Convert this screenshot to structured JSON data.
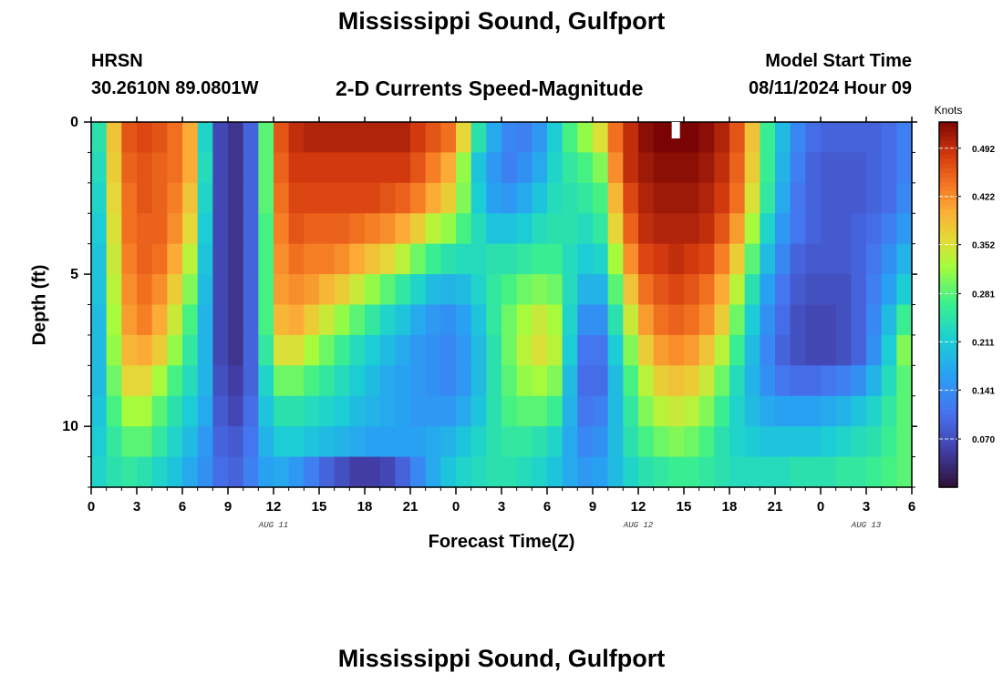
{
  "header": {
    "title": "Mississippi Sound, Gulfport",
    "station_code": "HRSN",
    "station_coords": "30.2610N  89.0801W",
    "plot_title": "2-D Currents Speed-Magnitude",
    "start_label": "Model Start Time",
    "start_value": "08/11/2024 Hour 09"
  },
  "footer": {
    "title": "Mississippi Sound, Gulfport"
  },
  "chart_data": {
    "type": "heatmap",
    "title": "2-D Currents Speed-Magnitude",
    "xlabel": "Forecast Time(Z)",
    "ylabel": "Depth (ft)",
    "x_hours_from_aug11_00z": [
      0,
      54
    ],
    "x_ticks": [
      "0",
      "3",
      "6",
      "9",
      "12",
      "15",
      "18",
      "21",
      "0",
      "3",
      "6",
      "9",
      "12",
      "15",
      "18",
      "21",
      "0",
      "3",
      "6"
    ],
    "date_labels": [
      "AUG 11",
      "AUG 12",
      "AUG 13"
    ],
    "y_ticks": [
      "0",
      "5",
      "10"
    ],
    "ylim_ft": [
      0,
      12
    ],
    "depth_levels_ft": [
      0.5,
      1.5,
      2.5,
      3.5,
      4.5,
      5.5,
      6.5,
      7.5,
      8.5,
      9.5,
      10.5,
      11.5
    ],
    "colorbar": {
      "title": "Knots",
      "ticks": [
        "0.070",
        "0.141",
        "0.211",
        "0.281",
        "0.352",
        "0.422",
        "0.492"
      ],
      "range_knots": [
        0.0,
        0.53
      ]
    },
    "current_speed_knots_by_depth": [
      [
        0.24,
        0.38,
        0.46,
        0.47,
        0.46,
        0.44,
        0.4,
        0.22,
        0.06,
        0.04,
        0.09,
        0.28,
        0.46,
        0.49,
        0.5,
        0.5,
        0.5,
        0.5,
        0.5,
        0.5,
        0.5,
        0.48,
        0.46,
        0.44,
        0.36,
        0.24,
        0.17,
        0.13,
        0.12,
        0.15,
        0.21,
        0.27,
        0.31,
        0.35,
        0.44,
        0.49,
        0.52,
        0.53,
        0.53,
        0.53,
        0.52,
        0.5,
        0.46,
        0.38,
        0.26,
        0.19,
        0.13,
        0.1,
        0.09,
        0.09,
        0.09,
        0.09,
        0.1,
        0.12
      ],
      [
        0.23,
        0.37,
        0.45,
        0.46,
        0.45,
        0.44,
        0.4,
        0.23,
        0.06,
        0.04,
        0.09,
        0.28,
        0.45,
        0.48,
        0.48,
        0.48,
        0.48,
        0.48,
        0.48,
        0.48,
        0.48,
        0.46,
        0.43,
        0.4,
        0.31,
        0.2,
        0.15,
        0.12,
        0.14,
        0.17,
        0.22,
        0.25,
        0.27,
        0.3,
        0.42,
        0.49,
        0.51,
        0.52,
        0.52,
        0.52,
        0.51,
        0.49,
        0.45,
        0.37,
        0.26,
        0.18,
        0.12,
        0.09,
        0.08,
        0.08,
        0.08,
        0.09,
        0.1,
        0.12
      ],
      [
        0.22,
        0.36,
        0.44,
        0.46,
        0.45,
        0.43,
        0.38,
        0.22,
        0.06,
        0.04,
        0.09,
        0.28,
        0.44,
        0.47,
        0.47,
        0.47,
        0.47,
        0.47,
        0.47,
        0.46,
        0.45,
        0.43,
        0.4,
        0.37,
        0.3,
        0.21,
        0.16,
        0.15,
        0.17,
        0.2,
        0.23,
        0.24,
        0.25,
        0.27,
        0.39,
        0.47,
        0.5,
        0.51,
        0.51,
        0.51,
        0.5,
        0.48,
        0.44,
        0.35,
        0.25,
        0.17,
        0.11,
        0.09,
        0.08,
        0.08,
        0.08,
        0.09,
        0.1,
        0.13
      ],
      [
        0.21,
        0.35,
        0.44,
        0.45,
        0.45,
        0.42,
        0.36,
        0.21,
        0.06,
        0.04,
        0.09,
        0.27,
        0.43,
        0.46,
        0.45,
        0.45,
        0.45,
        0.44,
        0.43,
        0.42,
        0.4,
        0.37,
        0.33,
        0.31,
        0.27,
        0.23,
        0.2,
        0.2,
        0.21,
        0.23,
        0.24,
        0.24,
        0.23,
        0.25,
        0.36,
        0.45,
        0.49,
        0.5,
        0.5,
        0.5,
        0.49,
        0.46,
        0.41,
        0.32,
        0.22,
        0.15,
        0.11,
        0.09,
        0.08,
        0.08,
        0.09,
        0.1,
        0.12,
        0.15
      ],
      [
        0.2,
        0.34,
        0.43,
        0.45,
        0.44,
        0.4,
        0.33,
        0.2,
        0.06,
        0.04,
        0.09,
        0.27,
        0.42,
        0.44,
        0.43,
        0.43,
        0.42,
        0.4,
        0.38,
        0.36,
        0.33,
        0.29,
        0.26,
        0.24,
        0.23,
        0.23,
        0.24,
        0.24,
        0.25,
        0.26,
        0.26,
        0.23,
        0.21,
        0.22,
        0.32,
        0.42,
        0.47,
        0.48,
        0.49,
        0.48,
        0.47,
        0.43,
        0.37,
        0.28,
        0.19,
        0.13,
        0.09,
        0.08,
        0.08,
        0.08,
        0.09,
        0.11,
        0.14,
        0.18
      ],
      [
        0.2,
        0.33,
        0.42,
        0.44,
        0.42,
        0.37,
        0.3,
        0.19,
        0.06,
        0.04,
        0.09,
        0.27,
        0.41,
        0.42,
        0.41,
        0.39,
        0.37,
        0.34,
        0.31,
        0.28,
        0.25,
        0.22,
        0.19,
        0.18,
        0.19,
        0.22,
        0.25,
        0.27,
        0.29,
        0.3,
        0.29,
        0.23,
        0.18,
        0.18,
        0.28,
        0.38,
        0.44,
        0.46,
        0.47,
        0.46,
        0.44,
        0.4,
        0.33,
        0.24,
        0.16,
        0.11,
        0.08,
        0.07,
        0.07,
        0.07,
        0.09,
        0.12,
        0.16,
        0.21
      ],
      [
        0.19,
        0.32,
        0.41,
        0.43,
        0.4,
        0.34,
        0.27,
        0.18,
        0.06,
        0.04,
        0.09,
        0.27,
        0.39,
        0.4,
        0.37,
        0.34,
        0.31,
        0.28,
        0.25,
        0.22,
        0.2,
        0.17,
        0.15,
        0.14,
        0.16,
        0.2,
        0.25,
        0.29,
        0.32,
        0.34,
        0.32,
        0.22,
        0.14,
        0.14,
        0.24,
        0.34,
        0.41,
        0.44,
        0.45,
        0.44,
        0.42,
        0.37,
        0.29,
        0.21,
        0.14,
        0.1,
        0.07,
        0.06,
        0.06,
        0.07,
        0.09,
        0.13,
        0.19,
        0.26
      ],
      [
        0.19,
        0.31,
        0.39,
        0.4,
        0.37,
        0.31,
        0.25,
        0.18,
        0.06,
        0.04,
        0.09,
        0.25,
        0.35,
        0.35,
        0.32,
        0.29,
        0.26,
        0.23,
        0.21,
        0.19,
        0.17,
        0.15,
        0.14,
        0.13,
        0.15,
        0.19,
        0.24,
        0.29,
        0.33,
        0.35,
        0.33,
        0.21,
        0.11,
        0.11,
        0.21,
        0.3,
        0.37,
        0.41,
        0.42,
        0.41,
        0.38,
        0.33,
        0.26,
        0.19,
        0.13,
        0.09,
        0.07,
        0.06,
        0.06,
        0.07,
        0.09,
        0.14,
        0.21,
        0.3
      ],
      [
        0.19,
        0.29,
        0.36,
        0.36,
        0.32,
        0.27,
        0.23,
        0.18,
        0.07,
        0.05,
        0.09,
        0.22,
        0.29,
        0.29,
        0.27,
        0.25,
        0.23,
        0.21,
        0.19,
        0.17,
        0.16,
        0.15,
        0.14,
        0.13,
        0.15,
        0.19,
        0.24,
        0.28,
        0.31,
        0.32,
        0.3,
        0.19,
        0.1,
        0.1,
        0.19,
        0.27,
        0.33,
        0.37,
        0.38,
        0.37,
        0.34,
        0.29,
        0.23,
        0.18,
        0.14,
        0.11,
        0.1,
        0.1,
        0.11,
        0.12,
        0.14,
        0.18,
        0.23,
        0.28
      ],
      [
        0.2,
        0.27,
        0.32,
        0.32,
        0.28,
        0.24,
        0.21,
        0.17,
        0.08,
        0.06,
        0.1,
        0.2,
        0.24,
        0.24,
        0.23,
        0.22,
        0.21,
        0.19,
        0.18,
        0.17,
        0.16,
        0.15,
        0.15,
        0.15,
        0.17,
        0.2,
        0.24,
        0.27,
        0.28,
        0.28,
        0.26,
        0.18,
        0.11,
        0.12,
        0.19,
        0.25,
        0.3,
        0.33,
        0.34,
        0.33,
        0.3,
        0.26,
        0.22,
        0.19,
        0.17,
        0.16,
        0.16,
        0.16,
        0.17,
        0.18,
        0.2,
        0.22,
        0.25,
        0.28
      ],
      [
        0.21,
        0.25,
        0.28,
        0.28,
        0.25,
        0.22,
        0.19,
        0.15,
        0.09,
        0.08,
        0.11,
        0.18,
        0.21,
        0.21,
        0.2,
        0.19,
        0.18,
        0.17,
        0.16,
        0.16,
        0.16,
        0.16,
        0.17,
        0.18,
        0.2,
        0.22,
        0.24,
        0.25,
        0.25,
        0.24,
        0.22,
        0.17,
        0.13,
        0.14,
        0.19,
        0.24,
        0.27,
        0.29,
        0.3,
        0.29,
        0.27,
        0.24,
        0.22,
        0.21,
        0.2,
        0.2,
        0.2,
        0.2,
        0.21,
        0.22,
        0.23,
        0.24,
        0.26,
        0.28
      ],
      [
        0.22,
        0.24,
        0.25,
        0.24,
        0.22,
        0.2,
        0.17,
        0.14,
        0.1,
        0.09,
        0.12,
        0.16,
        0.17,
        0.15,
        0.12,
        0.09,
        0.07,
        0.05,
        0.05,
        0.06,
        0.09,
        0.13,
        0.17,
        0.2,
        0.22,
        0.23,
        0.24,
        0.24,
        0.23,
        0.22,
        0.2,
        0.17,
        0.15,
        0.16,
        0.19,
        0.22,
        0.24,
        0.25,
        0.26,
        0.26,
        0.25,
        0.24,
        0.23,
        0.23,
        0.23,
        0.23,
        0.24,
        0.24,
        0.24,
        0.25,
        0.25,
        0.26,
        0.27,
        0.28
      ]
    ]
  }
}
